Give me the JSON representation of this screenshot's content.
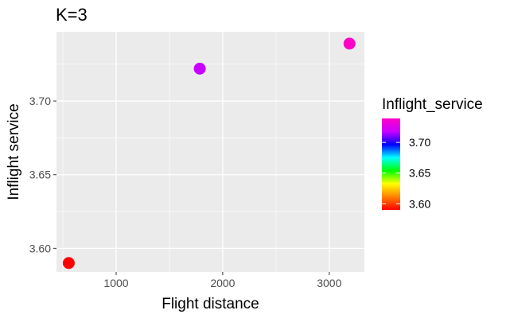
{
  "chart_data": {
    "type": "scatter",
    "title": "K=3",
    "xlabel": "Flight distance",
    "ylabel": "Inflight service",
    "xlim": [
      440,
      3330
    ],
    "ylim": [
      3.584,
      3.747
    ],
    "x_ticks": [
      1000,
      2000,
      3000
    ],
    "y_ticks": [
      3.6,
      3.65,
      3.7
    ],
    "x_tick_labels": [
      "1000",
      "2000",
      "3000"
    ],
    "y_tick_labels": [
      "3.60",
      "3.65",
      "3.70"
    ],
    "grid": true,
    "points": [
      {
        "x": 555,
        "y": 3.59,
        "color": "#ff0000"
      },
      {
        "x": 1785,
        "y": 3.722,
        "color": "#c800ff"
      },
      {
        "x": 3190,
        "y": 3.739,
        "color": "#ff00c8"
      }
    ],
    "legend": {
      "title": "Inflight_service",
      "position": "right",
      "range": [
        3.59,
        3.739
      ],
      "ticks": [
        3.6,
        3.65,
        3.7
      ],
      "tick_labels": [
        "3.60",
        "3.65",
        "3.70"
      ],
      "colors": [
        "#ff0000",
        "#ff8000",
        "#ffff00",
        "#00ff00",
        "#00ffff",
        "#0000ff",
        "#c800ff",
        "#ff00c8"
      ]
    }
  }
}
